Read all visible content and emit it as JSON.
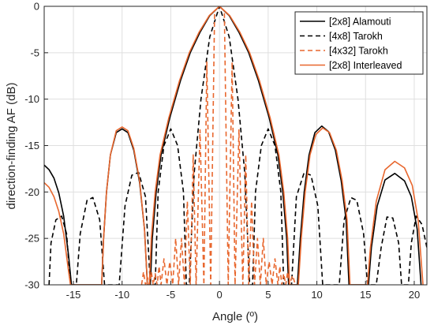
{
  "chart_data": {
    "type": "line",
    "xlabel": "Angle (º)",
    "ylabel": "direction-finding AF (dB)",
    "xlim": [
      -18,
      21.3
    ],
    "ylim": [
      -30,
      0
    ],
    "xticks": [
      -15,
      -10,
      -5,
      0,
      5,
      10,
      15,
      20
    ],
    "yticks": [
      0,
      -5,
      -10,
      -15,
      -20,
      -25,
      -30
    ],
    "grid": true,
    "legend_position": "top-right",
    "series": [
      {
        "name": "[2x8] Alamouti",
        "color": "#000000",
        "dash": "solid",
        "points": [
          [
            -18,
            -17.1
          ],
          [
            -17.5,
            -17.6
          ],
          [
            -17,
            -18.5
          ],
          [
            -16.5,
            -20.1
          ],
          [
            -16,
            -22.6
          ],
          [
            -15.5,
            -26.8
          ],
          [
            -15.2,
            -30
          ],
          [
            -12.1,
            -30
          ],
          [
            -11.9,
            -25
          ],
          [
            -11.6,
            -20
          ],
          [
            -11.2,
            -16
          ],
          [
            -10.6,
            -13.6
          ],
          [
            -10,
            -13.2
          ],
          [
            -9.4,
            -13.6
          ],
          [
            -8.8,
            -15.5
          ],
          [
            -8.2,
            -19
          ],
          [
            -7.7,
            -24
          ],
          [
            -7.4,
            -30
          ],
          [
            -7.1,
            -30
          ],
          [
            -6.9,
            -25
          ],
          [
            -6.5,
            -20
          ],
          [
            -6,
            -16
          ],
          [
            -5.1,
            -12
          ],
          [
            -4,
            -8
          ],
          [
            -3,
            -5
          ],
          [
            -2,
            -2.8
          ],
          [
            -1,
            -1.0
          ],
          [
            0,
            0
          ],
          [
            1,
            -1.0
          ],
          [
            2,
            -2.8
          ],
          [
            3,
            -5
          ],
          [
            4,
            -8
          ],
          [
            5.1,
            -12
          ],
          [
            6,
            -16
          ],
          [
            6.5,
            -20
          ],
          [
            6.9,
            -25
          ],
          [
            7.1,
            -30
          ],
          [
            8,
            -30
          ],
          [
            8.3,
            -25
          ],
          [
            8.7,
            -20
          ],
          [
            9.2,
            -16
          ],
          [
            9.8,
            -13.6
          ],
          [
            10.5,
            -12.9
          ],
          [
            11.2,
            -13.5
          ],
          [
            11.9,
            -15.5
          ],
          [
            12.5,
            -18.8
          ],
          [
            13,
            -23
          ],
          [
            13.3,
            -30
          ],
          [
            15.3,
            -30
          ],
          [
            15.6,
            -26
          ],
          [
            16.2,
            -21.5
          ],
          [
            17,
            -18.7
          ],
          [
            18,
            -18
          ],
          [
            19,
            -18.8
          ],
          [
            19.7,
            -20.5
          ],
          [
            20.3,
            -24
          ],
          [
            20.7,
            -30
          ]
        ]
      },
      {
        "name": "[4x8] Tarokh",
        "color": "#000000",
        "dash": "dashed",
        "points": [
          [
            -17.5,
            -30
          ],
          [
            -17.3,
            -25.5
          ],
          [
            -16.8,
            -23
          ],
          [
            -16.2,
            -22.6
          ],
          [
            -15.7,
            -24.5
          ],
          [
            -15.3,
            -30
          ],
          [
            -14.7,
            -30
          ],
          [
            -14.3,
            -24.5
          ],
          [
            -13.6,
            -20.9
          ],
          [
            -13,
            -20.6
          ],
          [
            -12.3,
            -23
          ],
          [
            -11.8,
            -30
          ],
          [
            -10.3,
            -30
          ],
          [
            -9.7,
            -21.5
          ],
          [
            -9,
            -18.2
          ],
          [
            -8.3,
            -17.9
          ],
          [
            -7.6,
            -20.5
          ],
          [
            -7.1,
            -30
          ],
          [
            -6.6,
            -30
          ],
          [
            -6.3,
            -20
          ],
          [
            -5.7,
            -15
          ],
          [
            -5,
            -13.2
          ],
          [
            -4.3,
            -15
          ],
          [
            -3.7,
            -20
          ],
          [
            -3.4,
            -30
          ],
          [
            -3.1,
            -30
          ],
          [
            -2.6,
            -18
          ],
          [
            -1.9,
            -10
          ],
          [
            -1,
            -3.3
          ],
          [
            0,
            0
          ],
          [
            1,
            -3.3
          ],
          [
            1.9,
            -10
          ],
          [
            2.6,
            -18
          ],
          [
            3.1,
            -30
          ],
          [
            3.4,
            -30
          ],
          [
            3.7,
            -20
          ],
          [
            4.3,
            -15
          ],
          [
            5,
            -13.2
          ],
          [
            5.7,
            -15
          ],
          [
            6.3,
            -20
          ],
          [
            6.6,
            -30
          ],
          [
            7.4,
            -30
          ],
          [
            7.9,
            -20.5
          ],
          [
            8.7,
            -17.9
          ],
          [
            9.4,
            -18.2
          ],
          [
            10.1,
            -21.5
          ],
          [
            10.6,
            -30
          ],
          [
            12.3,
            -30
          ],
          [
            12.8,
            -23
          ],
          [
            13.5,
            -20.6
          ],
          [
            14.1,
            -20.9
          ],
          [
            14.8,
            -24.5
          ],
          [
            15.2,
            -30
          ],
          [
            16.1,
            -30
          ],
          [
            16.6,
            -26
          ],
          [
            17.2,
            -22.7
          ],
          [
            17.8,
            -22.8
          ],
          [
            18.4,
            -25.5
          ],
          [
            18.7,
            -30
          ],
          [
            19.4,
            -30
          ],
          [
            19.7,
            -25.5
          ],
          [
            20.2,
            -22.6
          ],
          [
            20.8,
            -23.5
          ],
          [
            21.3,
            -26
          ]
        ]
      },
      {
        "name": "[4x32] Tarokh",
        "color": "#e8672e",
        "dash": "dashed",
        "points": [
          [
            -8,
            -30
          ],
          [
            -7.8,
            -28.6
          ],
          [
            -7.6,
            -30
          ],
          [
            -7.4,
            -29.2
          ],
          [
            -7.2,
            -30
          ],
          [
            -7,
            -28.6
          ],
          [
            -6.8,
            -30
          ],
          [
            -6.6,
            -28.8
          ],
          [
            -6.4,
            -30
          ],
          [
            -6.2,
            -28
          ],
          [
            -6,
            -30
          ],
          [
            -5.7,
            -27.2
          ],
          [
            -5.4,
            -30
          ],
          [
            -5.1,
            -27.5
          ],
          [
            -4.8,
            -30
          ],
          [
            -4.5,
            -25
          ],
          [
            -4.2,
            -30
          ],
          [
            -3.9,
            -25
          ],
          [
            -3.6,
            -30
          ],
          [
            -3.3,
            -21
          ],
          [
            -3.0,
            -30
          ],
          [
            -2.7,
            -16
          ],
          [
            -2.4,
            -30
          ],
          [
            -2.0,
            -13.3
          ],
          [
            -1.6,
            -30
          ],
          [
            -1.3,
            -6
          ],
          [
            -0.9,
            -30
          ],
          [
            -0.5,
            -0.5
          ],
          [
            0,
            0
          ],
          [
            0.5,
            -0.5
          ],
          [
            0.9,
            -30
          ],
          [
            1.3,
            -6
          ],
          [
            1.6,
            -30
          ],
          [
            2.0,
            -13.3
          ],
          [
            2.4,
            -30
          ],
          [
            2.7,
            -16
          ],
          [
            3.0,
            -30
          ],
          [
            3.3,
            -21
          ],
          [
            3.6,
            -30
          ],
          [
            3.9,
            -25
          ],
          [
            4.2,
            -30
          ],
          [
            4.5,
            -25
          ],
          [
            4.8,
            -30
          ],
          [
            5.1,
            -27.5
          ],
          [
            5.4,
            -30
          ],
          [
            5.7,
            -27.2
          ],
          [
            6,
            -30
          ],
          [
            6.2,
            -28
          ],
          [
            6.4,
            -30
          ],
          [
            6.6,
            -28.8
          ],
          [
            6.8,
            -30
          ],
          [
            7,
            -28.6
          ],
          [
            7.2,
            -30
          ],
          [
            7.5,
            -29
          ],
          [
            7.8,
            -30
          ]
        ]
      },
      {
        "name": "[2x8] Interleaved",
        "color": "#e8672e",
        "dash": "solid",
        "points": [
          [
            -18,
            -19
          ],
          [
            -17.5,
            -19.5
          ],
          [
            -17,
            -20.5
          ],
          [
            -16.5,
            -22.1
          ],
          [
            -16,
            -24.5
          ],
          [
            -15.5,
            -28.5
          ],
          [
            -15.3,
            -30
          ],
          [
            -12.1,
            -30
          ],
          [
            -11.9,
            -25
          ],
          [
            -11.6,
            -20
          ],
          [
            -11.2,
            -16
          ],
          [
            -10.6,
            -13.4
          ],
          [
            -10,
            -13
          ],
          [
            -9.4,
            -13.4
          ],
          [
            -8.8,
            -15.3
          ],
          [
            -8.2,
            -18.8
          ],
          [
            -7.7,
            -24
          ],
          [
            -7.4,
            -30
          ],
          [
            -7.2,
            -30
          ],
          [
            -7,
            -25
          ],
          [
            -6.6,
            -20
          ],
          [
            -6.1,
            -16
          ],
          [
            -5.2,
            -12
          ],
          [
            -4.1,
            -8
          ],
          [
            -3.1,
            -5
          ],
          [
            -2.1,
            -2.8
          ],
          [
            -1.05,
            -1.0
          ],
          [
            0,
            0
          ],
          [
            1.05,
            -1.0
          ],
          [
            2.1,
            -2.8
          ],
          [
            3.1,
            -5
          ],
          [
            4.1,
            -8
          ],
          [
            5.2,
            -12
          ],
          [
            6.1,
            -16
          ],
          [
            6.6,
            -20
          ],
          [
            7,
            -25
          ],
          [
            7.2,
            -30
          ],
          [
            8.1,
            -30
          ],
          [
            8.4,
            -25
          ],
          [
            8.8,
            -20
          ],
          [
            9.3,
            -16
          ],
          [
            9.9,
            -13.8
          ],
          [
            10.6,
            -13.1
          ],
          [
            11.3,
            -13.6
          ],
          [
            12,
            -15.5
          ],
          [
            12.6,
            -18.8
          ],
          [
            13.1,
            -23
          ],
          [
            13.4,
            -30
          ],
          [
            15.2,
            -30
          ],
          [
            15.5,
            -26
          ],
          [
            16.1,
            -21
          ],
          [
            17,
            -17.6
          ],
          [
            18,
            -16.7
          ],
          [
            19,
            -17.4
          ],
          [
            19.8,
            -19.3
          ],
          [
            20.4,
            -23
          ],
          [
            20.9,
            -30
          ]
        ]
      }
    ]
  }
}
